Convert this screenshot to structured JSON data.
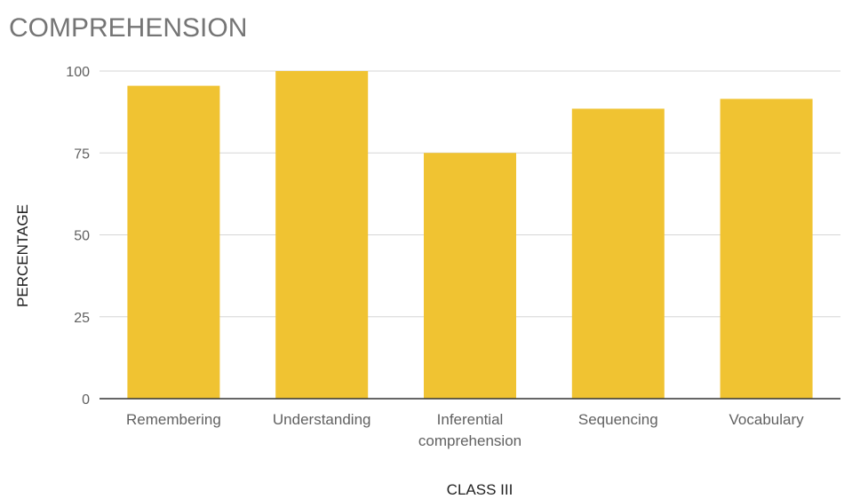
{
  "chart_data": {
    "type": "bar",
    "title": "COMPREHENSION",
    "xlabel": "CLASS III",
    "ylabel": "PERCENTAGE",
    "categories": [
      [
        "Remembering"
      ],
      [
        "Understanding"
      ],
      [
        "Inferential",
        "comprehension"
      ],
      [
        "Sequencing"
      ],
      [
        "Vocabulary"
      ]
    ],
    "values": [
      95.5,
      100,
      75,
      88.5,
      91.5
    ],
    "yticks": [
      0,
      25,
      50,
      75,
      100
    ],
    "ylim": [
      0,
      100
    ],
    "grid": true,
    "legend": "none",
    "bar_color": "#f0c332"
  }
}
